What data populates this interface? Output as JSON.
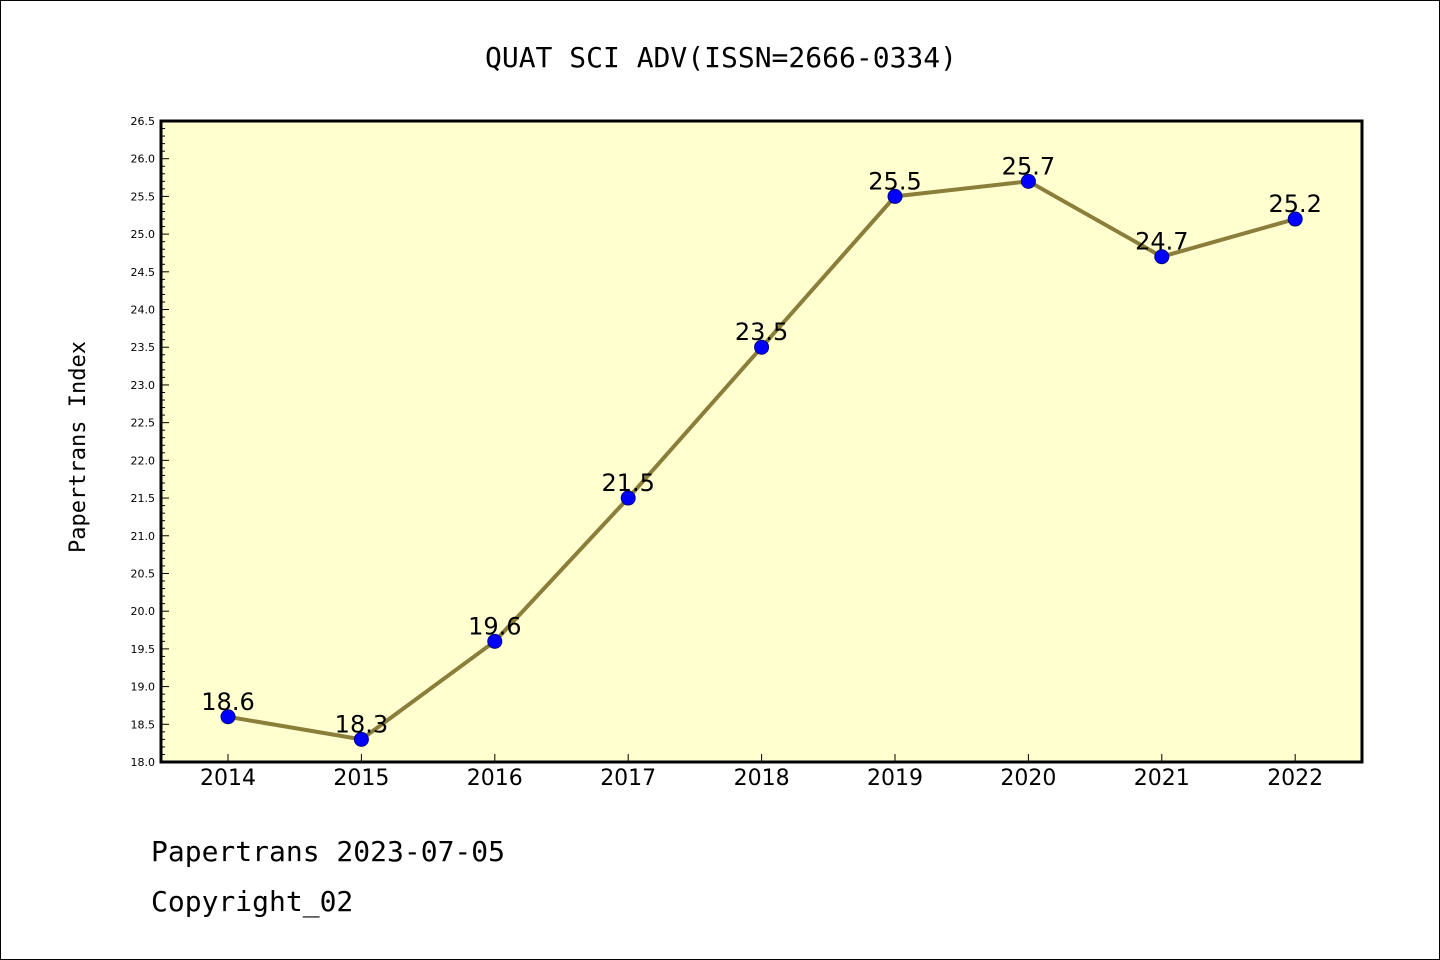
{
  "footer": {
    "line1": "Papertrans 2023-07-05",
    "line2": "Copyright_02"
  },
  "chart_data": {
    "type": "line",
    "title": "QUAT SCI ADV(ISSN=2666-0334)",
    "xlabel": "",
    "ylabel": "Papertrans Index",
    "categories": [
      "2014",
      "2015",
      "2016",
      "2017",
      "2018",
      "2019",
      "2020",
      "2021",
      "2022"
    ],
    "series": [
      {
        "values": [
          18.6,
          18.3,
          19.6,
          21.5,
          23.5,
          25.5,
          25.7,
          24.7,
          25.2
        ],
        "data_labels": [
          "18.6",
          "18.3",
          "19.6",
          "21.5",
          "23.5",
          "25.5",
          "25.7",
          "24.7",
          "25.2"
        ]
      }
    ],
    "ylim": [
      18.0,
      26.5
    ],
    "yticks": [
      "18.0",
      "18.5",
      "19.0",
      "19.5",
      "20.0",
      "20.5",
      "21.0",
      "21.5",
      "22.0",
      "22.5",
      "23.0",
      "23.5",
      "24.0",
      "24.5",
      "25.0",
      "25.5",
      "26.0",
      "26.5"
    ],
    "grid": false,
    "legend": "none",
    "colors": {
      "plot_background": "#ffffd0",
      "line": "#8b7d3a",
      "marker_fill": "#0000ff",
      "marker_edge": "#000080"
    }
  }
}
